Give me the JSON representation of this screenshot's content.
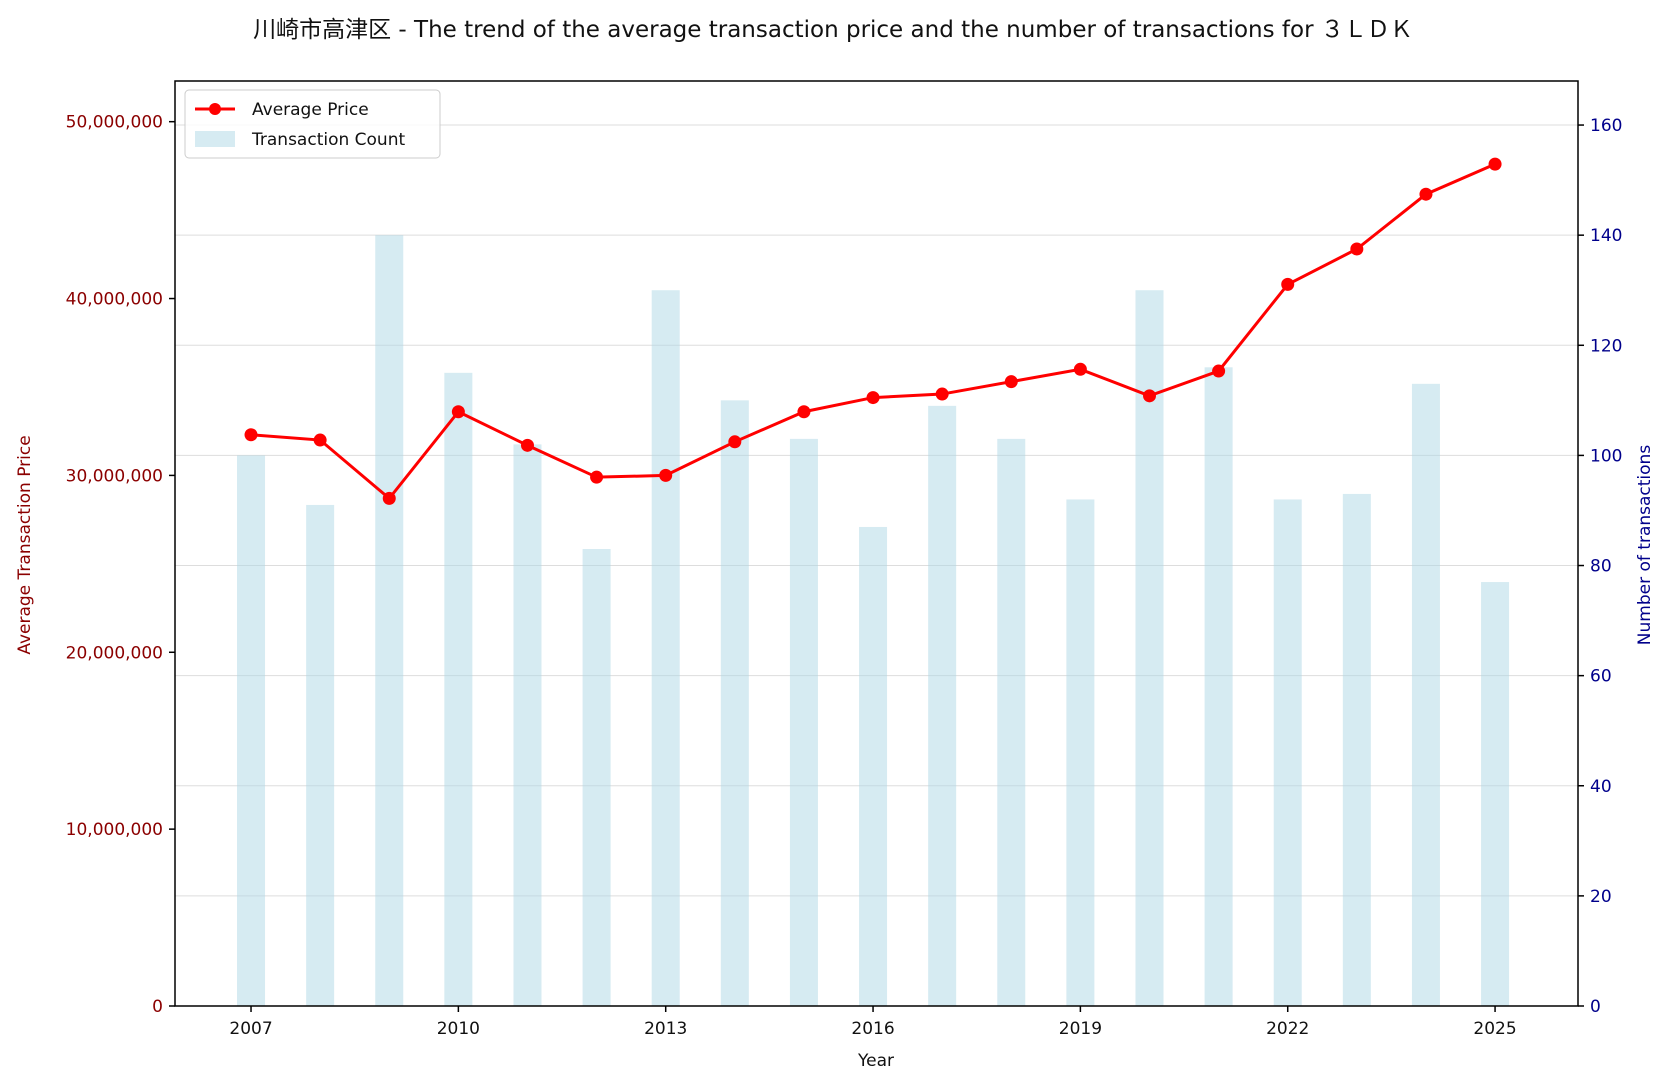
{
  "chart_data": {
    "type": "bar+line",
    "title": "川崎市高津区 - The trend of the average transaction price and the number of transactions for ３ＬＤＫ",
    "xlabel": "Year",
    "ylabel_left": "Average Transaction Price",
    "ylabel_right": "Number of transactions",
    "x": [
      2007,
      2008,
      2009,
      2010,
      2011,
      2012,
      2013,
      2014,
      2015,
      2016,
      2017,
      2018,
      2019,
      2020,
      2021,
      2022,
      2023,
      2024,
      2025
    ],
    "x_ticks": [
      "2007",
      "2010",
      "2013",
      "2016",
      "2019",
      "2022",
      "2025"
    ],
    "y_left_ticks": [
      "0",
      "10,000,000",
      "20,000,000",
      "30,000,000",
      "40,000,000",
      "50,000,000"
    ],
    "y_right_ticks": [
      "0",
      "20",
      "40",
      "60",
      "80",
      "100",
      "120",
      "140",
      "160"
    ],
    "ylim_left": [
      0,
      52300000
    ],
    "ylim_right": [
      0,
      168
    ],
    "xlim": [
      2005.9,
      2026.2
    ],
    "grid": true,
    "legend_position": "upper-left",
    "series": [
      {
        "name": "Average Price",
        "axis": "left",
        "type": "line",
        "color": "#ff0000",
        "values": [
          32300000,
          32000000,
          28700000,
          33600000,
          31700000,
          29900000,
          30000000,
          31900000,
          33600000,
          34400000,
          34600000,
          35300000,
          36000000,
          34500000,
          35900000,
          40800000,
          42800000,
          45900000,
          47600000
        ]
      },
      {
        "name": "Transaction Count",
        "axis": "right",
        "type": "bar",
        "color": "#add8e6",
        "values": [
          100,
          91,
          140,
          115,
          102,
          83,
          130,
          110,
          103,
          87,
          109,
          103,
          92,
          130,
          116,
          92,
          93,
          113,
          77
        ]
      }
    ]
  }
}
